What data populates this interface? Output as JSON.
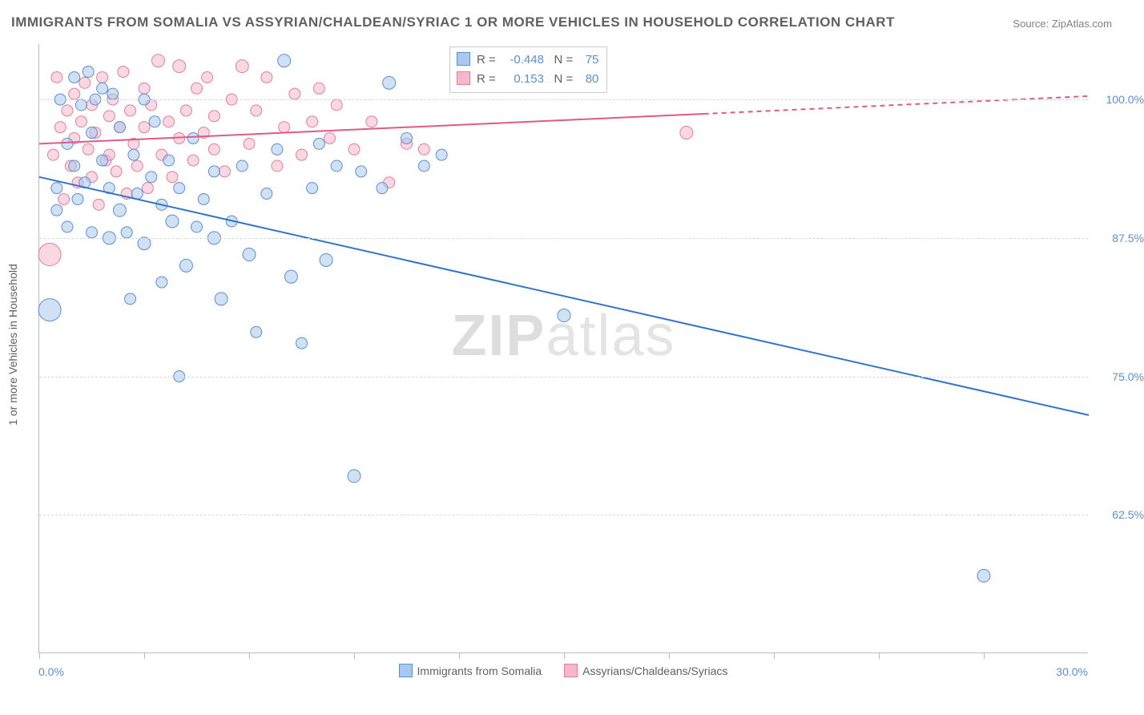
{
  "title": "IMMIGRANTS FROM SOMALIA VS ASSYRIAN/CHALDEAN/SYRIAC 1 OR MORE VEHICLES IN HOUSEHOLD CORRELATION CHART",
  "source_label": "Source:",
  "source_value": "ZipAtlas.com",
  "watermark_a": "ZIP",
  "watermark_b": "atlas",
  "y_axis_title": "1 or more Vehicles in Household",
  "x_axis": {
    "min": 0.0,
    "max": 30.0,
    "left_label": "0.0%",
    "right_label": "30.0%",
    "tick_positions_pct": [
      0,
      10,
      20,
      30,
      40,
      50,
      60,
      70,
      80,
      90
    ]
  },
  "y_axis": {
    "min": 50.0,
    "max": 105.0,
    "gridlines": [
      {
        "value": 62.5,
        "label": "62.5%"
      },
      {
        "value": 75.0,
        "label": "75.0%"
      },
      {
        "value": 87.5,
        "label": "87.5%"
      },
      {
        "value": 100.0,
        "label": "100.0%"
      }
    ]
  },
  "series": {
    "blue": {
      "name": "Immigrants from Somalia",
      "fill": "#a9c8ec",
      "fill_opacity": 0.55,
      "stroke": "#5b8fd6",
      "line_color": "#3573c8",
      "line_width": 2,
      "R": "-0.448",
      "N": "75",
      "regression": {
        "x1": 0.0,
        "y1": 93.0,
        "x2": 30.0,
        "y2": 71.5
      },
      "points": [
        {
          "x": 0.3,
          "y": 81.0,
          "r": 14
        },
        {
          "x": 0.5,
          "y": 92.0,
          "r": 7
        },
        {
          "x": 0.5,
          "y": 90.0,
          "r": 7
        },
        {
          "x": 0.6,
          "y": 100.0,
          "r": 7
        },
        {
          "x": 0.8,
          "y": 96.0,
          "r": 7
        },
        {
          "x": 0.8,
          "y": 88.5,
          "r": 7
        },
        {
          "x": 1.0,
          "y": 94.0,
          "r": 7
        },
        {
          "x": 1.0,
          "y": 102.0,
          "r": 7
        },
        {
          "x": 1.1,
          "y": 91.0,
          "r": 7
        },
        {
          "x": 1.2,
          "y": 99.5,
          "r": 7
        },
        {
          "x": 1.3,
          "y": 92.5,
          "r": 7
        },
        {
          "x": 1.4,
          "y": 102.5,
          "r": 7
        },
        {
          "x": 1.5,
          "y": 88.0,
          "r": 7
        },
        {
          "x": 1.5,
          "y": 97.0,
          "r": 7
        },
        {
          "x": 1.6,
          "y": 100.0,
          "r": 7
        },
        {
          "x": 1.8,
          "y": 94.5,
          "r": 7
        },
        {
          "x": 1.8,
          "y": 101.0,
          "r": 7
        },
        {
          "x": 2.0,
          "y": 87.5,
          "r": 8
        },
        {
          "x": 2.0,
          "y": 92.0,
          "r": 7
        },
        {
          "x": 2.1,
          "y": 100.5,
          "r": 7
        },
        {
          "x": 2.3,
          "y": 90.0,
          "r": 8
        },
        {
          "x": 2.3,
          "y": 97.5,
          "r": 7
        },
        {
          "x": 2.5,
          "y": 88.0,
          "r": 7
        },
        {
          "x": 2.6,
          "y": 82.0,
          "r": 7
        },
        {
          "x": 2.7,
          "y": 95.0,
          "r": 7
        },
        {
          "x": 2.8,
          "y": 91.5,
          "r": 7
        },
        {
          "x": 3.0,
          "y": 87.0,
          "r": 8
        },
        {
          "x": 3.0,
          "y": 100.0,
          "r": 7
        },
        {
          "x": 3.2,
          "y": 93.0,
          "r": 7
        },
        {
          "x": 3.3,
          "y": 98.0,
          "r": 7
        },
        {
          "x": 3.5,
          "y": 90.5,
          "r": 7
        },
        {
          "x": 3.5,
          "y": 83.5,
          "r": 7
        },
        {
          "x": 3.7,
          "y": 94.5,
          "r": 7
        },
        {
          "x": 3.8,
          "y": 89.0,
          "r": 8
        },
        {
          "x": 4.0,
          "y": 92.0,
          "r": 7
        },
        {
          "x": 4.0,
          "y": 75.0,
          "r": 7
        },
        {
          "x": 4.2,
          "y": 85.0,
          "r": 8
        },
        {
          "x": 4.4,
          "y": 96.5,
          "r": 7
        },
        {
          "x": 4.5,
          "y": 88.5,
          "r": 7
        },
        {
          "x": 4.7,
          "y": 91.0,
          "r": 7
        },
        {
          "x": 5.0,
          "y": 87.5,
          "r": 8
        },
        {
          "x": 5.0,
          "y": 93.5,
          "r": 7
        },
        {
          "x": 5.2,
          "y": 82.0,
          "r": 8
        },
        {
          "x": 5.5,
          "y": 89.0,
          "r": 7
        },
        {
          "x": 5.8,
          "y": 94.0,
          "r": 7
        },
        {
          "x": 6.0,
          "y": 86.0,
          "r": 8
        },
        {
          "x": 6.2,
          "y": 79.0,
          "r": 7
        },
        {
          "x": 6.5,
          "y": 91.5,
          "r": 7
        },
        {
          "x": 6.8,
          "y": 95.5,
          "r": 7
        },
        {
          "x": 7.0,
          "y": 103.5,
          "r": 8
        },
        {
          "x": 7.2,
          "y": 84.0,
          "r": 8
        },
        {
          "x": 7.5,
          "y": 78.0,
          "r": 7
        },
        {
          "x": 7.8,
          "y": 92.0,
          "r": 7
        },
        {
          "x": 8.0,
          "y": 96.0,
          "r": 7
        },
        {
          "x": 8.2,
          "y": 85.5,
          "r": 8
        },
        {
          "x": 8.5,
          "y": 94.0,
          "r": 7
        },
        {
          "x": 9.0,
          "y": 66.0,
          "r": 8
        },
        {
          "x": 9.2,
          "y": 93.5,
          "r": 7
        },
        {
          "x": 9.8,
          "y": 92.0,
          "r": 7
        },
        {
          "x": 10.0,
          "y": 101.5,
          "r": 8
        },
        {
          "x": 10.5,
          "y": 96.5,
          "r": 7
        },
        {
          "x": 11.0,
          "y": 94.0,
          "r": 7
        },
        {
          "x": 11.5,
          "y": 95.0,
          "r": 7
        },
        {
          "x": 15.0,
          "y": 80.5,
          "r": 8
        },
        {
          "x": 27.0,
          "y": 57.0,
          "r": 8
        }
      ]
    },
    "pink": {
      "name": "Assyrians/Chaldeans/Syriacs",
      "fill": "#f4b8c9",
      "fill_opacity": 0.55,
      "stroke": "#e37fa0",
      "line_color": "#e05a86",
      "line_width": 2,
      "R": "0.153",
      "N": "80",
      "regression_solid": {
        "x1": 0.0,
        "y1": 96.0,
        "x2": 19.0,
        "y2": 98.7
      },
      "regression_dashed": {
        "x1": 19.0,
        "y1": 98.7,
        "x2": 30.0,
        "y2": 100.3
      },
      "points": [
        {
          "x": 0.3,
          "y": 86.0,
          "r": 14
        },
        {
          "x": 0.4,
          "y": 95.0,
          "r": 7
        },
        {
          "x": 0.5,
          "y": 102.0,
          "r": 7
        },
        {
          "x": 0.6,
          "y": 97.5,
          "r": 7
        },
        {
          "x": 0.7,
          "y": 91.0,
          "r": 7
        },
        {
          "x": 0.8,
          "y": 99.0,
          "r": 7
        },
        {
          "x": 0.9,
          "y": 94.0,
          "r": 7
        },
        {
          "x": 1.0,
          "y": 100.5,
          "r": 7
        },
        {
          "x": 1.0,
          "y": 96.5,
          "r": 7
        },
        {
          "x": 1.1,
          "y": 92.5,
          "r": 7
        },
        {
          "x": 1.2,
          "y": 98.0,
          "r": 7
        },
        {
          "x": 1.3,
          "y": 101.5,
          "r": 7
        },
        {
          "x": 1.4,
          "y": 95.5,
          "r": 7
        },
        {
          "x": 1.5,
          "y": 93.0,
          "r": 7
        },
        {
          "x": 1.5,
          "y": 99.5,
          "r": 7
        },
        {
          "x": 1.6,
          "y": 97.0,
          "r": 7
        },
        {
          "x": 1.7,
          "y": 90.5,
          "r": 7
        },
        {
          "x": 1.8,
          "y": 102.0,
          "r": 7
        },
        {
          "x": 1.9,
          "y": 94.5,
          "r": 7
        },
        {
          "x": 2.0,
          "y": 98.5,
          "r": 7
        },
        {
          "x": 2.0,
          "y": 95.0,
          "r": 7
        },
        {
          "x": 2.1,
          "y": 100.0,
          "r": 7
        },
        {
          "x": 2.2,
          "y": 93.5,
          "r": 7
        },
        {
          "x": 2.3,
          "y": 97.5,
          "r": 7
        },
        {
          "x": 2.4,
          "y": 102.5,
          "r": 7
        },
        {
          "x": 2.5,
          "y": 91.5,
          "r": 7
        },
        {
          "x": 2.6,
          "y": 99.0,
          "r": 7
        },
        {
          "x": 2.7,
          "y": 96.0,
          "r": 7
        },
        {
          "x": 2.8,
          "y": 94.0,
          "r": 7
        },
        {
          "x": 3.0,
          "y": 101.0,
          "r": 7
        },
        {
          "x": 3.0,
          "y": 97.5,
          "r": 7
        },
        {
          "x": 3.1,
          "y": 92.0,
          "r": 7
        },
        {
          "x": 3.2,
          "y": 99.5,
          "r": 7
        },
        {
          "x": 3.4,
          "y": 103.5,
          "r": 8
        },
        {
          "x": 3.5,
          "y": 95.0,
          "r": 7
        },
        {
          "x": 3.7,
          "y": 98.0,
          "r": 7
        },
        {
          "x": 3.8,
          "y": 93.0,
          "r": 7
        },
        {
          "x": 4.0,
          "y": 103.0,
          "r": 8
        },
        {
          "x": 4.0,
          "y": 96.5,
          "r": 7
        },
        {
          "x": 4.2,
          "y": 99.0,
          "r": 7
        },
        {
          "x": 4.4,
          "y": 94.5,
          "r": 7
        },
        {
          "x": 4.5,
          "y": 101.0,
          "r": 7
        },
        {
          "x": 4.7,
          "y": 97.0,
          "r": 7
        },
        {
          "x": 4.8,
          "y": 102.0,
          "r": 7
        },
        {
          "x": 5.0,
          "y": 95.5,
          "r": 7
        },
        {
          "x": 5.0,
          "y": 98.5,
          "r": 7
        },
        {
          "x": 5.3,
          "y": 93.5,
          "r": 7
        },
        {
          "x": 5.5,
          "y": 100.0,
          "r": 7
        },
        {
          "x": 5.8,
          "y": 103.0,
          "r": 8
        },
        {
          "x": 6.0,
          "y": 96.0,
          "r": 7
        },
        {
          "x": 6.2,
          "y": 99.0,
          "r": 7
        },
        {
          "x": 6.5,
          "y": 102.0,
          "r": 7
        },
        {
          "x": 6.8,
          "y": 94.0,
          "r": 7
        },
        {
          "x": 7.0,
          "y": 97.5,
          "r": 7
        },
        {
          "x": 7.3,
          "y": 100.5,
          "r": 7
        },
        {
          "x": 7.5,
          "y": 95.0,
          "r": 7
        },
        {
          "x": 7.8,
          "y": 98.0,
          "r": 7
        },
        {
          "x": 8.0,
          "y": 101.0,
          "r": 7
        },
        {
          "x": 8.3,
          "y": 96.5,
          "r": 7
        },
        {
          "x": 8.5,
          "y": 99.5,
          "r": 7
        },
        {
          "x": 9.0,
          "y": 95.5,
          "r": 7
        },
        {
          "x": 9.5,
          "y": 98.0,
          "r": 7
        },
        {
          "x": 10.0,
          "y": 92.5,
          "r": 7
        },
        {
          "x": 10.5,
          "y": 96.0,
          "r": 7
        },
        {
          "x": 11.0,
          "y": 95.5,
          "r": 7
        },
        {
          "x": 18.5,
          "y": 97.0,
          "r": 8
        }
      ]
    }
  },
  "bottom_legend": [
    {
      "series": "blue"
    },
    {
      "series": "pink"
    }
  ],
  "stats_labels": {
    "R": "R =",
    "N": "N ="
  }
}
